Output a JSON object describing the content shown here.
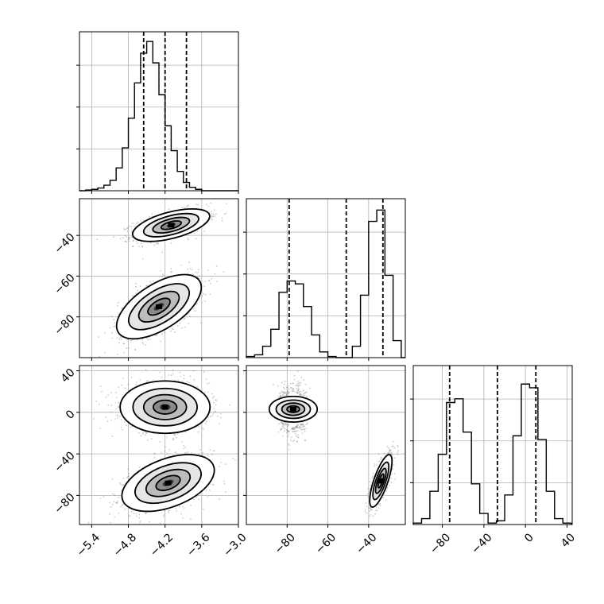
{
  "chart_data": {
    "type": "corner",
    "parameters": [
      "",
      "",
      ""
    ],
    "grid": true,
    "axes": [
      {
        "param": 0,
        "range": [
          -5.6,
          -3.0
        ],
        "ticks": [
          -5.4,
          -4.8,
          -4.2,
          -3.6,
          -3.0
        ],
        "ticklabels": [
          "−5.4",
          "−4.8",
          "−4.2",
          "−3.6",
          "−3.0"
        ]
      },
      {
        "param": 1,
        "range": [
          -100,
          -22
        ],
        "ticks": [
          -80,
          -60,
          -40
        ],
        "ticklabels": [
          "−80",
          "−60",
          "−40"
        ]
      },
      {
        "param": 2,
        "range": [
          -108,
          45
        ],
        "ticks": [
          -80,
          -40,
          0,
          40
        ],
        "ticklabels": [
          "−80",
          "−40",
          "0",
          "40"
        ]
      }
    ],
    "histograms": [
      {
        "param": 0,
        "bin_edges": [
          -5.6,
          -5.5,
          -5.4,
          -5.3,
          -5.2,
          -5.1,
          -5.0,
          -4.9,
          -4.8,
          -4.7,
          -4.6,
          -4.5,
          -4.4,
          -4.3,
          -4.2,
          -4.1,
          -4.0,
          -3.9,
          -3.8,
          -3.7,
          -3.6,
          -3.5,
          -3.4,
          -3.3,
          -3.2,
          -3.1,
          -3.0
        ],
        "counts": [
          0,
          1,
          2,
          4,
          8,
          15,
          33,
          62,
          105,
          156,
          199,
          216,
          185,
          139,
          94,
          58,
          28,
          12,
          5,
          2,
          0,
          0,
          0,
          0,
          0,
          0
        ],
        "ymax": 230,
        "quantiles": [
          -4.55,
          -4.2,
          -3.85
        ]
      },
      {
        "param": 1,
        "bin_edges": [
          -100,
          -96,
          -92,
          -88,
          -84,
          -80,
          -76,
          -72,
          -68,
          -64,
          -60,
          -56,
          -52,
          -48,
          -44,
          -40,
          -36,
          -32,
          -28,
          -24,
          -22
        ],
        "counts": [
          2,
          5,
          20,
          50,
          115,
          135,
          130,
          90,
          40,
          10,
          2,
          0,
          0,
          20,
          110,
          240,
          260,
          145,
          30,
          0
        ],
        "ymax": 280,
        "quantiles": [
          -79,
          -51,
          -33
        ]
      },
      {
        "param": 2,
        "bin_edges": [
          -108,
          -100,
          -92,
          -84,
          -76,
          -68,
          -60,
          -52,
          -44,
          -36,
          -28,
          -20,
          -12,
          -4,
          4,
          12,
          20,
          28,
          36,
          44
        ],
        "counts": [
          2,
          8,
          45,
          95,
          165,
          170,
          125,
          55,
          15,
          2,
          5,
          40,
          120,
          190,
          185,
          115,
          45,
          8,
          2
        ],
        "ymax": 215,
        "quantiles": [
          -73,
          -27,
          10
        ]
      }
    ],
    "scatter_panels": [
      {
        "x_param": 0,
        "y_param": 1,
        "clusters": [
          {
            "mean": [
              -4.1,
              -35
            ],
            "sd": [
              0.3,
              3.8
            ],
            "corr": 0.55,
            "n": 1100
          },
          {
            "mean": [
              -4.3,
              -75
            ],
            "sd": [
              0.33,
              7.5
            ],
            "corr": 0.6,
            "n": 1100
          }
        ]
      },
      {
        "x_param": 0,
        "y_param": 2,
        "clusters": [
          {
            "mean": [
              -4.2,
              5
            ],
            "sd": [
              0.35,
              12
            ],
            "corr": 0.0,
            "n": 1100
          },
          {
            "mean": [
              -4.15,
              -68
            ],
            "sd": [
              0.36,
              13
            ],
            "corr": 0.45,
            "n": 1100
          }
        ]
      },
      {
        "x_param": 1,
        "y_param": 2,
        "clusters": [
          {
            "mean": [
              -77,
              3
            ],
            "sd": [
              3.0,
              11
            ],
            "corr": 0.0,
            "n": 1100
          },
          {
            "mean": [
              -34,
              -66
            ],
            "sd": [
              2.6,
              12
            ],
            "corr": 0.75,
            "n": 1100
          }
        ]
      }
    ]
  }
}
